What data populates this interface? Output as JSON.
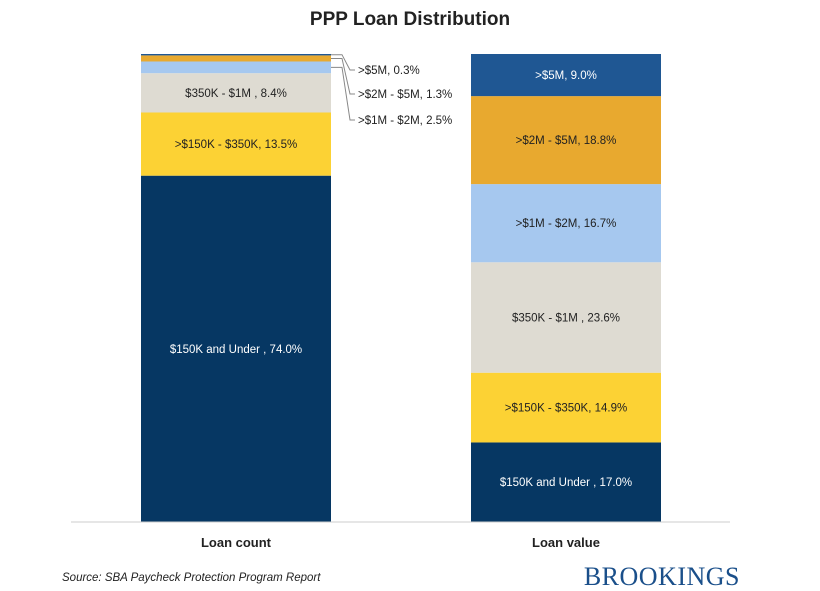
{
  "chart_data": {
    "type": "bar",
    "stacked": true,
    "normalized": true,
    "title": "PPP Loan Distribution",
    "categories": [
      "Loan count",
      "Loan value"
    ],
    "ylim": [
      0,
      100
    ],
    "grid": false,
    "legend": "none",
    "series": [
      {
        "name": "$150K and Under ",
        "values": [
          74.0,
          17.0
        ],
        "labels": [
          "$150K and Under , 74.0%",
          "$150K and Under , 17.0%"
        ],
        "color": "#063763",
        "text_color": "#ffffff"
      },
      {
        "name": ">$150K - $350K",
        "values": [
          13.5,
          14.9
        ],
        "labels": [
          ">$150K - $350K, 13.5%",
          ">$150K - $350K, 14.9%"
        ],
        "color": "#fcd234",
        "text_color": "#222222"
      },
      {
        "name": "$350K - $1M ",
        "values": [
          8.4,
          23.6
        ],
        "labels": [
          "$350K - $1M , 8.4%",
          "$350K - $1M , 23.6%"
        ],
        "color": "#dedbd2",
        "text_color": "#222222"
      },
      {
        "name": ">$1M - $2M",
        "values": [
          2.5,
          16.7
        ],
        "labels": [
          ">$1M - $2M, 2.5%",
          ">$1M - $2M, 16.7%"
        ],
        "color": "#a6c8ef",
        "text_color": "#222222"
      },
      {
        "name": ">$2M - $5M",
        "values": [
          1.3,
          18.8
        ],
        "labels": [
          ">$2M - $5M, 1.3%",
          ">$2M - $5M, 18.8%"
        ],
        "color": "#e8a92f",
        "text_color": "#222222"
      },
      {
        "name": ">$5M",
        "values": [
          0.3,
          9.0
        ],
        "labels": [
          ">$5M, 0.3%",
          ">$5M, 9.0%"
        ],
        "color": "#1f5793",
        "text_color": "#ffffff"
      }
    ],
    "annotations": [
      {
        "text": ">$5M, 0.3%",
        "series": ">$5M",
        "category": "Loan count"
      },
      {
        "text": ">$2M - $5M, 1.3%",
        "series": ">$2M - $5M",
        "category": "Loan count"
      },
      {
        "text": ">$1M - $2M, 2.5%",
        "series": ">$1M - $2M",
        "category": "Loan count"
      }
    ]
  },
  "footer": {
    "source": "Source: SBA Paycheck Protection Program Report",
    "brand": "BROOKINGS"
  },
  "colors": {
    "baseline": "#cccccc",
    "leader": "#888888"
  }
}
